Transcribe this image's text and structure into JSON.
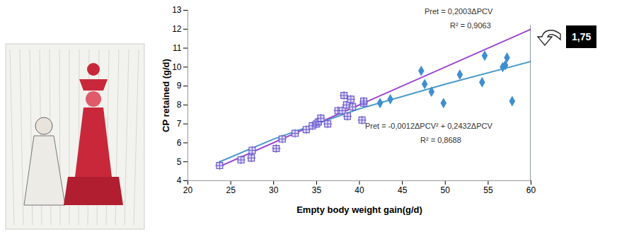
{
  "chart_data": {
    "type": "scatter",
    "xlabel": "Empty body weight gain(g/d)",
    "ylabel": "CP retained (g/d)",
    "xlim": [
      20,
      60
    ],
    "xticks": [
      20,
      25,
      30,
      35,
      40,
      45,
      50,
      55,
      60
    ],
    "ylim": [
      4,
      13
    ],
    "yticks": [
      4,
      5,
      6,
      7,
      8,
      9,
      10,
      11,
      12,
      13
    ],
    "series": [
      {
        "type": "scatter",
        "marker": "square",
        "color": "#6a5acd",
        "x": [
          23.7,
          26.2,
          27.4,
          27.5,
          30.3,
          31.0,
          32.5,
          33.8,
          34.5,
          35.0,
          35.2,
          35.5,
          36.3,
          37.5,
          38.0,
          38.2,
          38.5,
          38.6,
          39.0,
          39.2,
          40.3,
          40.5,
          40.5
        ],
        "values": [
          4.8,
          5.1,
          5.2,
          5.6,
          5.7,
          6.2,
          6.5,
          6.7,
          6.9,
          7.0,
          7.1,
          7.3,
          7.0,
          7.7,
          7.7,
          8.5,
          8.0,
          7.4,
          8.3,
          7.9,
          7.2,
          8.1,
          8.2
        ]
      },
      {
        "type": "scatter",
        "marker": "diamond",
        "color": "#3f8fcf",
        "x": [
          42.4,
          43.6,
          47.2,
          47.6,
          48.4,
          49.8,
          51.7,
          54.3,
          54.6,
          56.7,
          57.0,
          57.2,
          57.8
        ],
        "values": [
          8.1,
          8.3,
          9.8,
          9.1,
          8.7,
          8.1,
          9.6,
          9.2,
          10.6,
          10.0,
          10.1,
          10.5,
          8.2
        ]
      },
      {
        "type": "line",
        "color": "#9b3fd0",
        "x": [
          23.7,
          60
        ],
        "values": [
          4.75,
          12.0
        ]
      },
      {
        "type": "line",
        "color": "#4a9bc9",
        "x": [
          23.7,
          30,
          40,
          50,
          60
        ],
        "values": [
          5.0,
          6.2,
          7.8,
          9.1,
          10.3
        ]
      },
      {
        "type": "line",
        "color": "#1f2a6b",
        "x": [
          60,
          60
        ],
        "values": [
          4,
          12.2
        ]
      }
    ],
    "annotations": [
      {
        "text": "Pret = 0,2003ΔPCV"
      },
      {
        "text": "R² = 0,9063"
      },
      {
        "text": "Pret = -0,0012ΔPCV² + 0,2432ΔPCV"
      },
      {
        "text": "R² = 0,8688"
      },
      {
        "text": "1,75",
        "color": "#000000"
      }
    ]
  }
}
